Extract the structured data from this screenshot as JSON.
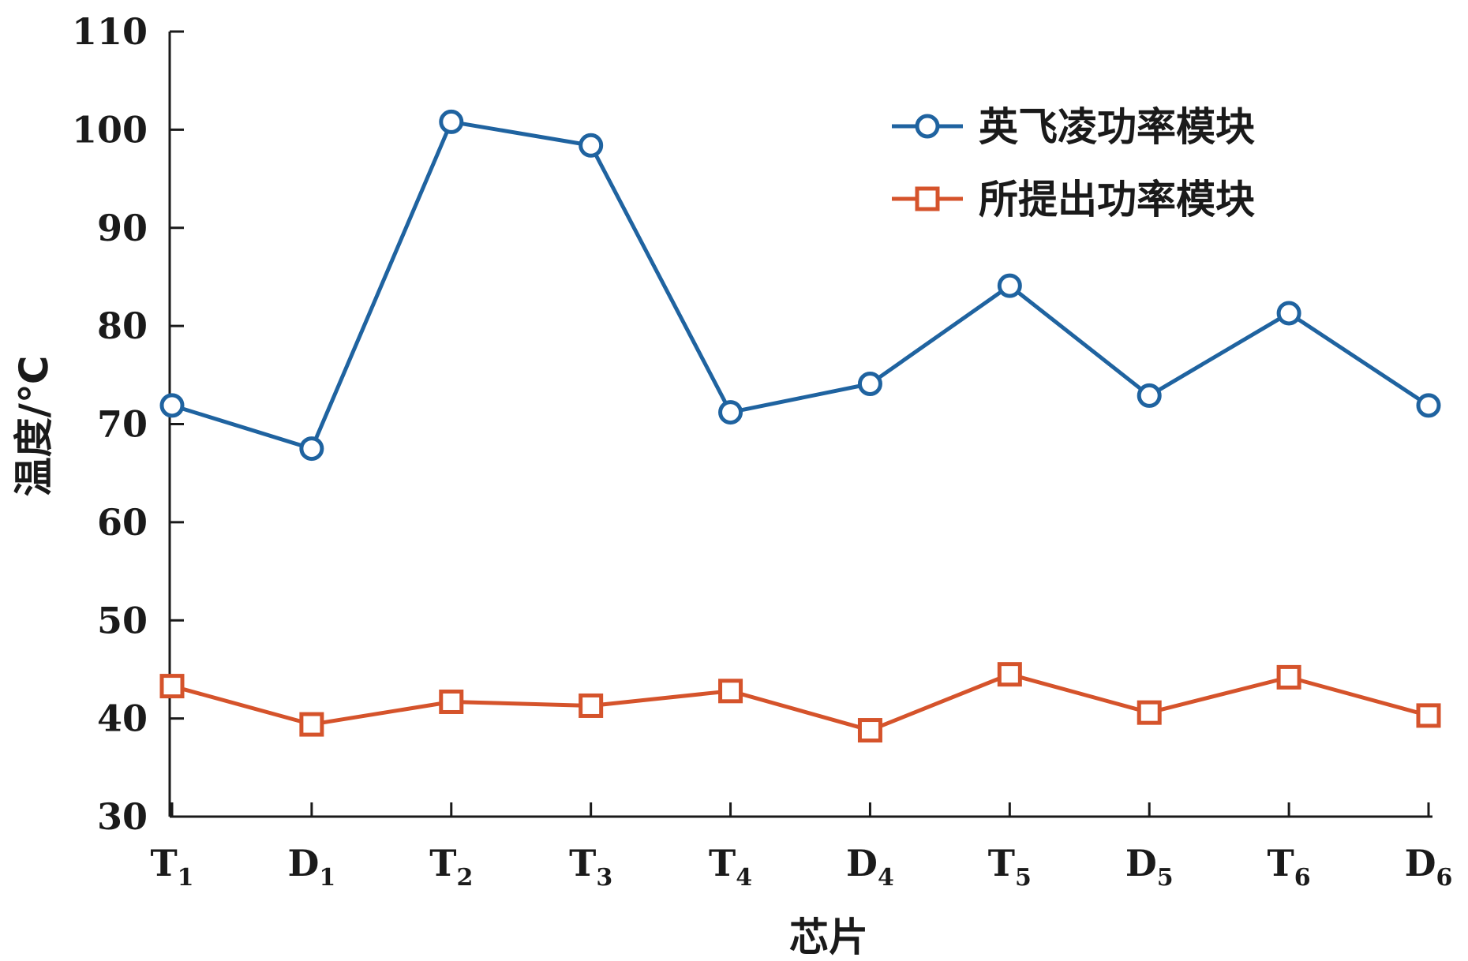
{
  "chart_data": {
    "type": "line",
    "categories": [
      {
        "main": "T",
        "sub": "1"
      },
      {
        "main": "D",
        "sub": "1"
      },
      {
        "main": "T",
        "sub": "2"
      },
      {
        "main": "T",
        "sub": "3"
      },
      {
        "main": "T",
        "sub": "4"
      },
      {
        "main": "D",
        "sub": "4"
      },
      {
        "main": "T",
        "sub": "5"
      },
      {
        "main": "D",
        "sub": "5"
      },
      {
        "main": "T",
        "sub": "6"
      },
      {
        "main": "D",
        "sub": "6"
      }
    ],
    "series": [
      {
        "name": "英飞凌功率模块",
        "color": "#1f63a0",
        "marker": "circle",
        "values": [
          71.9,
          67.5,
          100.8,
          98.4,
          71.2,
          74.1,
          84.1,
          72.9,
          81.3,
          71.9
        ]
      },
      {
        "name": "所提出功率模块",
        "color": "#d5532b",
        "marker": "square",
        "values": [
          43.3,
          39.4,
          41.7,
          41.3,
          42.8,
          38.8,
          44.5,
          40.6,
          44.2,
          40.3
        ]
      }
    ],
    "xlabel": "芯片",
    "ylabel": "温度/℃",
    "ylim": [
      30,
      110
    ],
    "yticks": [
      30,
      40,
      50,
      60,
      70,
      80,
      90,
      100,
      110
    ],
    "legend_position": "top-right",
    "grid": false
  }
}
